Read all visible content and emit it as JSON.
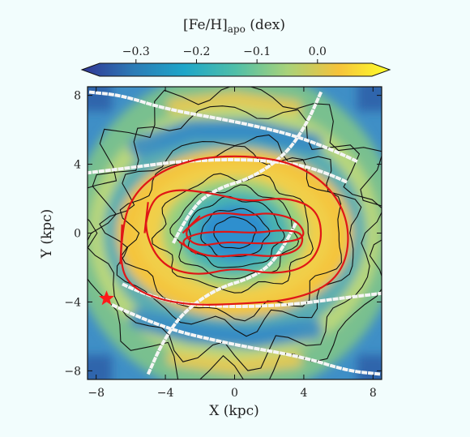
{
  "chart_data": {
    "type": "heatmap",
    "title": "",
    "colorbar": {
      "label": "[Fe/H]",
      "label_sub": "apo",
      "label_unit": "(dex)",
      "range": [
        -0.36,
        0.09
      ],
      "ticks": [
        -0.3,
        -0.2,
        -0.1,
        0.0
      ],
      "tick_labels": [
        "−0.3",
        "−0.2",
        "−0.1",
        "0.0"
      ],
      "extend": "both",
      "colors": [
        "#313695",
        "#2c7bb6",
        "#1ea6c9",
        "#4fbfa8",
        "#a8d27a",
        "#f5c33b",
        "#ffff2a"
      ]
    },
    "xlabel": "X (kpc)",
    "ylabel": "Y (kpc)",
    "xlim": [
      -8.5,
      8.5
    ],
    "ylim": [
      -8.5,
      8.5
    ],
    "xticks": [
      -8,
      -4,
      0,
      4,
      8
    ],
    "yticks": [
      -8,
      -4,
      0,
      4,
      8
    ],
    "xtick_labels": [
      "−8",
      "−4",
      "0",
      "4",
      "8"
    ],
    "ytick_labels": [
      "−8",
      "−4",
      "0",
      "4",
      "8"
    ],
    "field": {
      "description": "metal-poor bar core at origin, metal-rich ring around bar, metal-poor spiral arms",
      "center_value": -0.33,
      "ring_value": 0.05,
      "arm_value": -0.28,
      "edge_value": -0.3
    },
    "red_contours": [
      {
        "name": "outer",
        "points": [
          [
            -6.6,
            -1.8
          ],
          [
            -6.5,
            0.5
          ],
          [
            -5.8,
            2.3
          ],
          [
            -4.3,
            3.6
          ],
          [
            -2.0,
            4.4
          ],
          [
            1.0,
            4.5
          ],
          [
            3.6,
            4.0
          ],
          [
            5.6,
            2.6
          ],
          [
            6.6,
            0.6
          ],
          [
            6.5,
            -1.6
          ],
          [
            5.4,
            -3.1
          ],
          [
            3.2,
            -3.9
          ],
          [
            0.5,
            -4.1
          ],
          [
            -2.4,
            -4.2
          ],
          [
            -4.6,
            -3.8
          ],
          [
            -6.1,
            -3.0
          ]
        ]
      },
      {
        "name": "inner-ring",
        "points": [
          [
            -5.2,
            0.0
          ],
          [
            -5.0,
            1.8
          ],
          [
            -3.6,
            2.6
          ],
          [
            -1.2,
            2.3
          ],
          [
            0.8,
            1.8
          ],
          [
            3.0,
            2.1
          ],
          [
            4.8,
            1.4
          ],
          [
            5.1,
            -0.5
          ],
          [
            4.2,
            -2.0
          ],
          [
            2.2,
            -2.4
          ],
          [
            0.0,
            -2.0
          ],
          [
            -2.2,
            -2.5
          ],
          [
            -4.2,
            -1.9
          ]
        ]
      },
      {
        "name": "bar-upper",
        "points": [
          [
            -3.0,
            0.0
          ],
          [
            -2.0,
            1.0
          ],
          [
            -0.6,
            1.2
          ],
          [
            0.8,
            1.0
          ],
          [
            2.0,
            1.2
          ],
          [
            3.6,
            0.8
          ],
          [
            4.2,
            -0.3
          ],
          [
            2.4,
            -0.6
          ],
          [
            1.0,
            -0.6
          ],
          [
            -0.5,
            -0.5
          ],
          [
            -2.2,
            -0.8
          ]
        ]
      },
      {
        "name": "bar-lower",
        "points": [
          [
            -3.2,
            -0.5
          ],
          [
            -2.2,
            -1.2
          ],
          [
            -0.8,
            -1.4
          ],
          [
            0.6,
            -1.2
          ],
          [
            2.2,
            -1.4
          ],
          [
            3.8,
            -1.0
          ],
          [
            4.0,
            0.0
          ],
          [
            2.8,
            0.2
          ],
          [
            1.2,
            0.0
          ],
          [
            -0.6,
            0.1
          ],
          [
            -2.2,
            0.0
          ]
        ]
      }
    ],
    "spiral_arms_dotted": [
      {
        "points": [
          [
            -3.5,
            -0.5
          ],
          [
            -2.5,
            1.5
          ],
          [
            -1.0,
            2.6
          ],
          [
            1.0,
            3.2
          ],
          [
            3.0,
            4.6
          ],
          [
            4.2,
            6.4
          ],
          [
            5.0,
            8.2
          ]
        ]
      },
      {
        "points": [
          [
            3.5,
            0.5
          ],
          [
            2.5,
            -1.5
          ],
          [
            1.0,
            -2.6
          ],
          [
            -1.0,
            -3.2
          ],
          [
            -3.0,
            -4.6
          ],
          [
            -4.2,
            -6.4
          ],
          [
            -5.0,
            -8.2
          ]
        ]
      },
      {
        "points": [
          [
            -6.4,
            -3.0
          ],
          [
            -4.5,
            -3.9
          ],
          [
            -1.0,
            -4.3
          ],
          [
            3.0,
            -4.2
          ],
          [
            6.0,
            -3.8
          ],
          [
            8.5,
            -3.5
          ]
        ]
      },
      {
        "points": [
          [
            6.4,
            3.0
          ],
          [
            4.5,
            3.9
          ],
          [
            1.0,
            4.3
          ],
          [
            -3.0,
            4.2
          ],
          [
            -6.0,
            3.8
          ],
          [
            -8.5,
            3.5
          ]
        ]
      },
      {
        "points": [
          [
            -7.0,
            -4.2
          ],
          [
            -4.5,
            -5.4
          ],
          [
            -0.5,
            -6.4
          ],
          [
            4.0,
            -7.2
          ],
          [
            6.5,
            -8.0
          ],
          [
            8.5,
            -8.2
          ]
        ]
      },
      {
        "points": [
          [
            7.0,
            4.2
          ],
          [
            4.5,
            5.4
          ],
          [
            0.5,
            6.4
          ],
          [
            -4.0,
            7.2
          ],
          [
            -6.5,
            8.0
          ],
          [
            -8.5,
            8.2
          ]
        ]
      }
    ],
    "sun_marker": {
      "x": -7.4,
      "y": -3.8,
      "color": "#ff1a1a"
    }
  }
}
